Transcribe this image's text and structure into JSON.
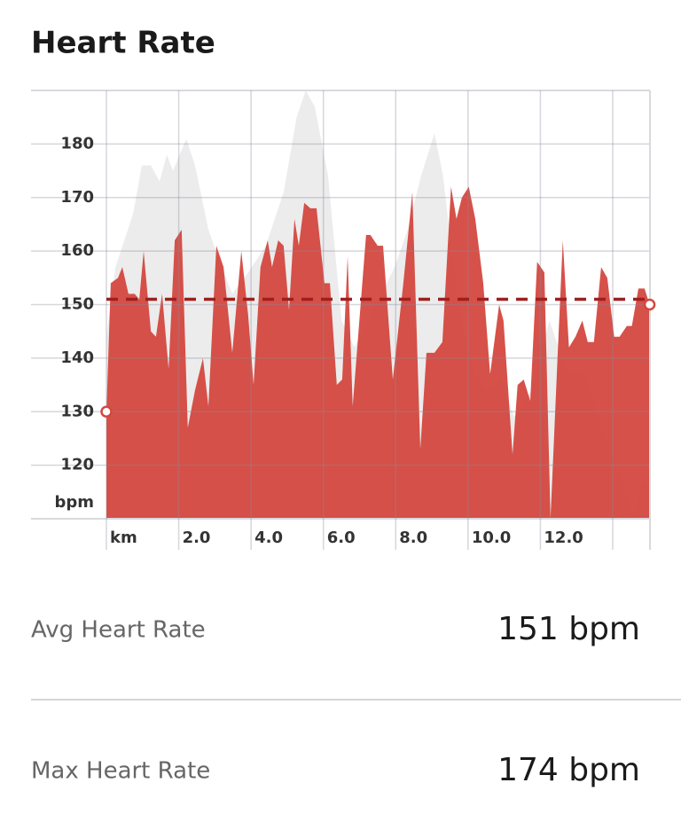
{
  "title": "Heart Rate",
  "chart_data": {
    "type": "area",
    "y_label": "bpm",
    "xlim": [
      0,
      15.03
    ],
    "ylim": [
      110,
      190
    ],
    "xticks": [
      {
        "value": 0,
        "label": "km"
      },
      {
        "value": 2,
        "label": "2.0"
      },
      {
        "value": 4,
        "label": "4.0"
      },
      {
        "value": 6,
        "label": "6.0"
      },
      {
        "value": 8,
        "label": "8.0"
      },
      {
        "value": 10,
        "label": "10.0"
      },
      {
        "value": 12,
        "label": "12.0"
      },
      {
        "value": 14,
        "label": null
      }
    ],
    "yticks": [
      120,
      130,
      140,
      150,
      160,
      170,
      180
    ],
    "grid": true,
    "average": 151,
    "average_color": "#9e1f1f",
    "series": [
      {
        "color": "#ececec",
        "x": [
          0,
          0.25,
          0.74,
          0.98,
          1.23,
          1.47,
          1.67,
          1.84,
          2.21,
          2.45,
          2.82,
          3.19,
          3.48,
          3.92,
          4.41,
          4.9,
          5.26,
          5.51,
          5.76,
          6.13,
          6.5,
          6.86,
          7.23,
          7.6,
          7.97,
          8.33,
          8.7,
          9.07,
          9.31,
          9.56,
          9.8,
          10.17,
          10.54,
          10.91,
          11.27,
          11.76,
          12.25,
          12.75,
          13.24,
          13.73,
          14.22,
          14.58,
          14.83,
          15.02
        ],
        "values": [
          144,
          157,
          167,
          176,
          176,
          173,
          178,
          175,
          181,
          176,
          164,
          157,
          152,
          156,
          161,
          171,
          185,
          190,
          187,
          174,
          147,
          142,
          147,
          152,
          157,
          164,
          174,
          182,
          174,
          159,
          147,
          137,
          134,
          136,
          129,
          134,
          147,
          137,
          137,
          126,
          118,
          110,
          117,
          116
        ]
      },
      {
        "color": "#d4483f",
        "x": [
          0,
          0.12,
          0.32,
          0.44,
          0.61,
          0.78,
          0.91,
          1.03,
          1.23,
          1.37,
          1.54,
          1.72,
          1.89,
          2.08,
          2.25,
          2.45,
          2.67,
          2.82,
          3.04,
          3.24,
          3.48,
          3.73,
          3.92,
          4.07,
          4.26,
          4.46,
          4.58,
          4.75,
          4.9,
          5.05,
          5.2,
          5.32,
          5.47,
          5.64,
          5.81,
          6.03,
          6.18,
          6.37,
          6.52,
          6.67,
          6.81,
          7.18,
          7.3,
          7.5,
          7.65,
          7.92,
          8.21,
          8.46,
          8.68,
          8.85,
          9.07,
          9.29,
          9.53,
          9.68,
          9.83,
          10.02,
          10.2,
          10.42,
          10.61,
          10.86,
          10.98,
          11.23,
          11.37,
          11.54,
          11.72,
          11.91,
          12.11,
          12.28,
          12.48,
          12.62,
          12.79,
          12.97,
          13.16,
          13.31,
          13.48,
          13.68,
          13.85,
          14.04,
          14.19,
          14.39,
          14.53,
          14.71,
          14.88,
          15.02
        ],
        "values": [
          130,
          154,
          155,
          157,
          152,
          152,
          151,
          160,
          145,
          144,
          152,
          138,
          162,
          164,
          127,
          134,
          140,
          131,
          161,
          157,
          141,
          160,
          148,
          135,
          157,
          162,
          157,
          162,
          161,
          149,
          166,
          161,
          169,
          168,
          168,
          154,
          154,
          135,
          136,
          159,
          131,
          163,
          163,
          161,
          161,
          136,
          154,
          171,
          123,
          141,
          141,
          143,
          172,
          166,
          170,
          172,
          166,
          154,
          137,
          150,
          147,
          122,
          135,
          136,
          132,
          158,
          156,
          110,
          141,
          162,
          142,
          144,
          147,
          143,
          143,
          157,
          155,
          144,
          144,
          146,
          146,
          153,
          153,
          150
        ]
      }
    ]
  },
  "stats": [
    {
      "label": "Avg Heart Rate",
      "value": "151 bpm"
    },
    {
      "label": "Max Heart Rate",
      "value": "174 bpm"
    }
  ]
}
